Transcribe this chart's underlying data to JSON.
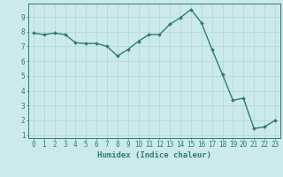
{
  "x": [
    0,
    1,
    2,
    3,
    4,
    5,
    6,
    7,
    8,
    9,
    10,
    11,
    12,
    13,
    14,
    15,
    16,
    17,
    18,
    19,
    20,
    21,
    22,
    23
  ],
  "y": [
    7.9,
    7.8,
    7.9,
    7.8,
    7.25,
    7.2,
    7.2,
    7.0,
    6.35,
    6.8,
    7.35,
    7.8,
    7.8,
    8.5,
    8.95,
    9.5,
    8.6,
    6.8,
    5.1,
    3.35,
    3.5,
    1.45,
    1.55,
    2.0
  ],
  "line_color": "#2e7d6e",
  "marker_color": "#2e7d6e",
  "bg_color": "#cceaea",
  "grid_color": "#b8d8d8",
  "xlabel": "Humidex (Indice chaleur)",
  "ylim": [
    0.8,
    9.9
  ],
  "xlim": [
    -0.5,
    23.5
  ],
  "yticks": [
    1,
    2,
    3,
    4,
    5,
    6,
    7,
    8,
    9
  ],
  "xtick_labels": [
    "0",
    "1",
    "2",
    "3",
    "4",
    "5",
    "6",
    "7",
    "8",
    "9",
    "10",
    "11",
    "12",
    "13",
    "14",
    "15",
    "16",
    "17",
    "18",
    "19",
    "20",
    "21",
    "22",
    "23"
  ],
  "tick_fontsize": 5.5,
  "label_fontsize": 6.5
}
